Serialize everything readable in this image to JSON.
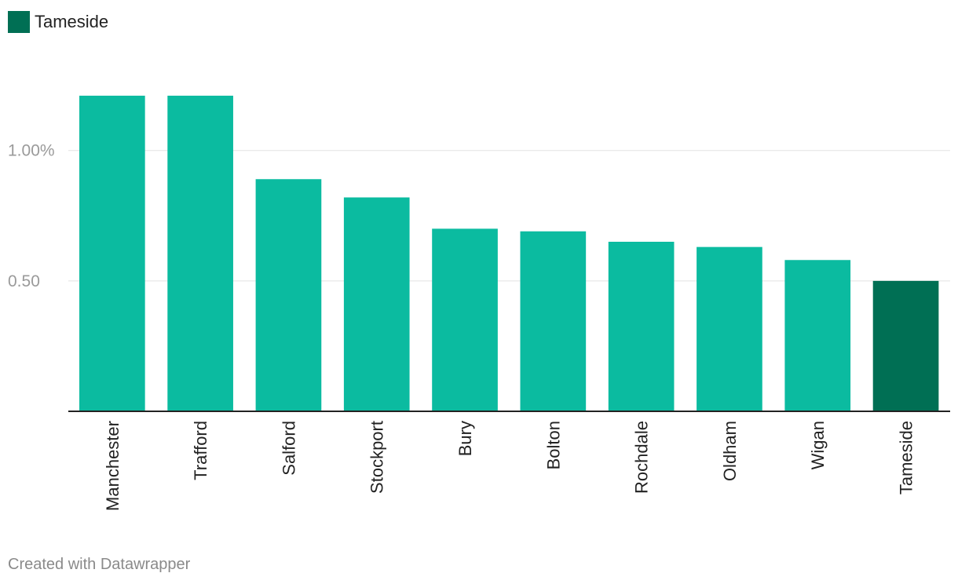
{
  "legend": {
    "label": "Tameside",
    "color": "#006f54"
  },
  "colors": {
    "bar": "#0bbba0",
    "highlight": "#006f54",
    "grid": "#e3e3e3",
    "axis": "#222222",
    "tick_text": "#9a9a9a",
    "label_text": "#222222"
  },
  "chart_data": {
    "type": "bar",
    "title": "",
    "xlabel": "",
    "ylabel": "",
    "categories": [
      "Manchester",
      "Trafford",
      "Salford",
      "Stockport",
      "Bury",
      "Bolton",
      "Rochdale",
      "Oldham",
      "Wigan",
      "Tameside"
    ],
    "values": [
      1.21,
      1.21,
      0.89,
      0.82,
      0.7,
      0.69,
      0.65,
      0.63,
      0.58,
      0.5
    ],
    "highlight": "Tameside",
    "ylim": [
      0,
      1.3
    ],
    "yticks": [
      {
        "value": 0.5,
        "label": "0.50"
      },
      {
        "value": 1.0,
        "label": "1.00%"
      }
    ],
    "grid": true,
    "legend_position": "top-left"
  },
  "footer": {
    "credit": "Created with Datawrapper"
  }
}
